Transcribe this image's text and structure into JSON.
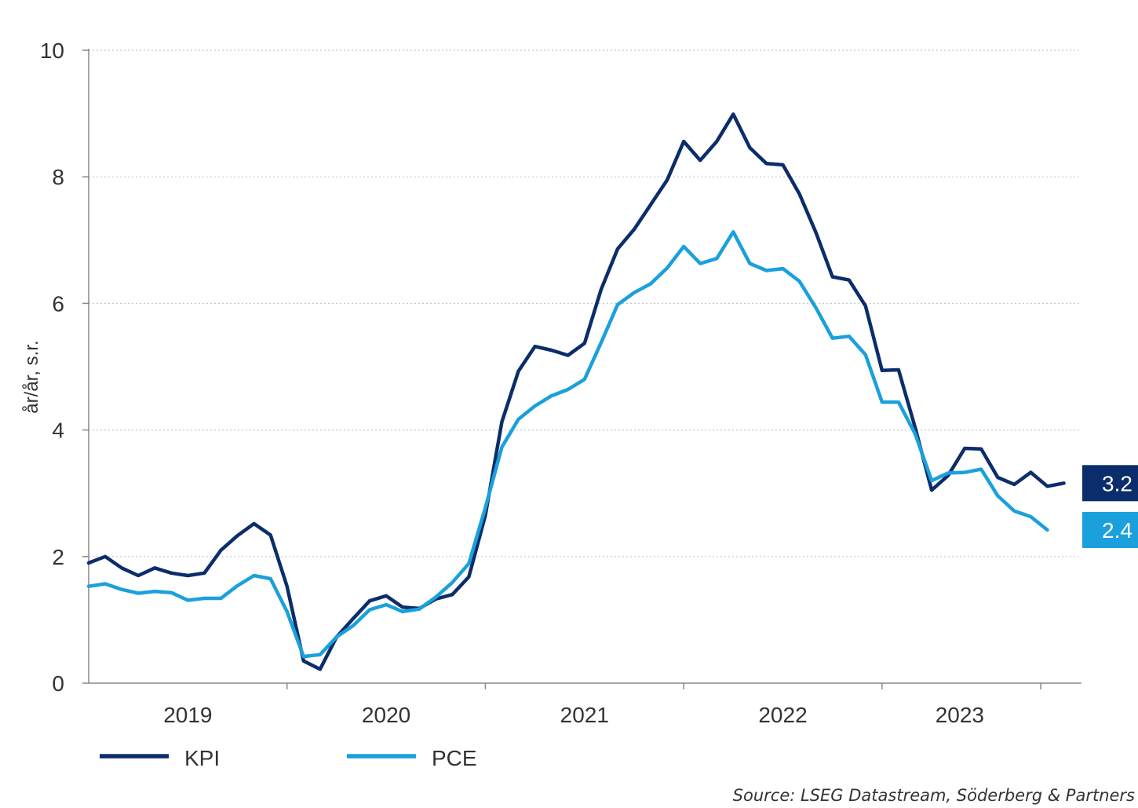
{
  "chart_data": {
    "type": "line",
    "ylabel": "år/år, s.r.",
    "xlabel": "",
    "ylim": [
      0,
      10
    ],
    "yticks": [
      0,
      2,
      4,
      6,
      8,
      10
    ],
    "grid": "horizontal dotted",
    "x_axis_labels": [
      "2019",
      "2020",
      "2021",
      "2022",
      "2023"
    ],
    "legend_position": "bottom-left",
    "start_month": "2019-01",
    "series": [
      {
        "name": "KPI",
        "color": "#0b2d6b",
        "end_label": "3.2",
        "values": [
          1.9,
          2.0,
          1.82,
          1.7,
          1.82,
          1.74,
          1.7,
          1.74,
          2.1,
          2.33,
          2.52,
          2.34,
          1.53,
          0.35,
          0.22,
          0.73,
          1.02,
          1.3,
          1.38,
          1.2,
          1.18,
          1.33,
          1.4,
          1.68,
          2.65,
          4.13,
          4.93,
          5.32,
          5.26,
          5.18,
          5.37,
          6.22,
          6.86,
          7.17,
          7.56,
          7.95,
          8.56,
          8.26,
          8.56,
          8.99,
          8.46,
          8.21,
          8.19,
          7.73,
          7.12,
          6.42,
          6.37,
          5.96,
          4.94,
          4.95,
          4.04,
          3.05,
          3.28,
          3.71,
          3.7,
          3.25,
          3.14,
          3.33,
          3.11,
          3.16
        ]
      },
      {
        "name": "PCE",
        "color": "#1aa0dc",
        "end_label": "2.4",
        "values": [
          1.53,
          1.57,
          1.48,
          1.42,
          1.45,
          1.43,
          1.31,
          1.34,
          1.34,
          1.54,
          1.7,
          1.65,
          1.13,
          0.42,
          0.45,
          0.73,
          0.91,
          1.16,
          1.24,
          1.13,
          1.17,
          1.36,
          1.59,
          1.89,
          2.77,
          3.73,
          4.17,
          4.38,
          4.54,
          4.64,
          4.8,
          5.38,
          5.98,
          6.17,
          6.31,
          6.56,
          6.9,
          6.63,
          6.71,
          7.13,
          6.63,
          6.52,
          6.55,
          6.35,
          5.93,
          5.45,
          5.48,
          5.19,
          4.44,
          4.44,
          3.94,
          3.2,
          3.32,
          3.33,
          3.38,
          2.96,
          2.72,
          2.63,
          2.42
        ]
      }
    ]
  },
  "source_text": "Source: LSEG Datastream, Söderberg & Partners"
}
